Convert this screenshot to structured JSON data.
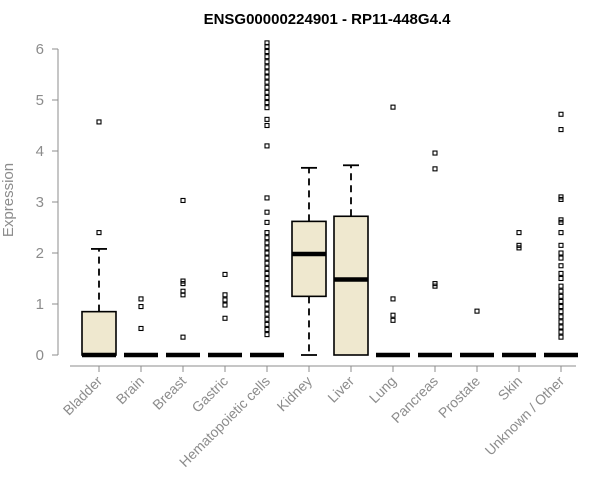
{
  "chart_data": {
    "type": "box",
    "title": "ENSG00000224901 - RP11-448G4.4",
    "xlabel": "",
    "ylabel": "Expression",
    "ylim": [
      0,
      6.2
    ],
    "yticks": [
      0,
      1,
      2,
      3,
      4,
      5,
      6
    ],
    "grid": false,
    "legend": "none",
    "colors": {
      "box_fill": "#efe8cf",
      "axis": "#8c8c8c",
      "ink": "#000000"
    },
    "categories": [
      "Bladder",
      "Brain",
      "Breast",
      "Gastric",
      "Hematopoietic cells",
      "Kidney",
      "Liver",
      "Lung",
      "Pancreas",
      "Prostate",
      "Skin",
      "Unknown / Other"
    ],
    "boxes": [
      {
        "category": "Bladder",
        "q1": 0,
        "median": 0,
        "q3": 0.85,
        "whisker_low": 0,
        "whisker_high": 2.08,
        "outliers": [
          2.4,
          4.57
        ]
      },
      {
        "category": "Brain",
        "q1": 0,
        "median": 0,
        "q3": 0,
        "whisker_low": 0,
        "whisker_high": 0,
        "outliers": [
          0.52,
          0.95,
          1.1
        ]
      },
      {
        "category": "Breast",
        "q1": 0,
        "median": 0,
        "q3": 0,
        "whisker_low": 0,
        "whisker_high": 0,
        "outliers": [
          0.35,
          1.18,
          1.25,
          1.4,
          1.45,
          3.03
        ]
      },
      {
        "category": "Gastric",
        "q1": 0,
        "median": 0,
        "q3": 0,
        "whisker_low": 0,
        "whisker_high": 0,
        "outliers": [
          0.72,
          0.98,
          1.08,
          1.18,
          1.58
        ]
      },
      {
        "category": "Hematopoietic cells",
        "q1": 0,
        "median": 0,
        "q3": 0,
        "whisker_low": 0,
        "whisker_high": 0,
        "outliers": [
          0.4,
          0.5,
          0.6,
          0.7,
          0.8,
          0.9,
          1.0,
          1.1,
          1.2,
          1.3,
          1.4,
          1.5,
          1.6,
          1.7,
          1.8,
          1.9,
          2.0,
          2.1,
          2.2,
          2.3,
          2.4,
          2.6,
          2.8,
          3.08,
          4.1,
          4.5,
          4.62,
          4.85,
          4.95,
          5.05,
          5.15,
          5.25,
          5.35,
          5.45,
          5.55,
          5.65,
          5.75,
          5.85,
          5.95,
          6.05,
          6.12
        ]
      },
      {
        "category": "Kidney",
        "q1": 1.15,
        "median": 1.98,
        "q3": 2.62,
        "whisker_low": 0,
        "whisker_high": 3.67,
        "outliers": []
      },
      {
        "category": "Liver",
        "q1": 0,
        "median": 1.48,
        "q3": 2.72,
        "whisker_low": 0,
        "whisker_high": 3.72,
        "outliers": []
      },
      {
        "category": "Lung",
        "q1": 0,
        "median": 0,
        "q3": 0,
        "whisker_low": 0,
        "whisker_high": 0,
        "outliers": [
          0.68,
          0.78,
          1.1,
          4.86
        ]
      },
      {
        "category": "Pancreas",
        "q1": 0,
        "median": 0,
        "q3": 0,
        "whisker_low": 0,
        "whisker_high": 0,
        "outliers": [
          1.35,
          1.4,
          3.65,
          3.96
        ]
      },
      {
        "category": "Prostate",
        "q1": 0,
        "median": 0,
        "q3": 0,
        "whisker_low": 0,
        "whisker_high": 0,
        "outliers": [
          0.86
        ]
      },
      {
        "category": "Skin",
        "q1": 0,
        "median": 0,
        "q3": 0,
        "whisker_low": 0,
        "whisker_high": 0,
        "outliers": [
          2.1,
          2.15,
          2.4
        ]
      },
      {
        "category": "Unknown / Other",
        "q1": 0,
        "median": 0,
        "q3": 0,
        "whisker_low": 0,
        "whisker_high": 0,
        "outliers": [
          0.35,
          0.45,
          0.55,
          0.65,
          0.75,
          0.85,
          0.95,
          1.05,
          1.15,
          1.25,
          1.35,
          1.5,
          1.6,
          1.75,
          1.9,
          2.0,
          2.15,
          2.4,
          2.6,
          2.65,
          3.05,
          3.1,
          4.42,
          4.72
        ]
      }
    ]
  }
}
